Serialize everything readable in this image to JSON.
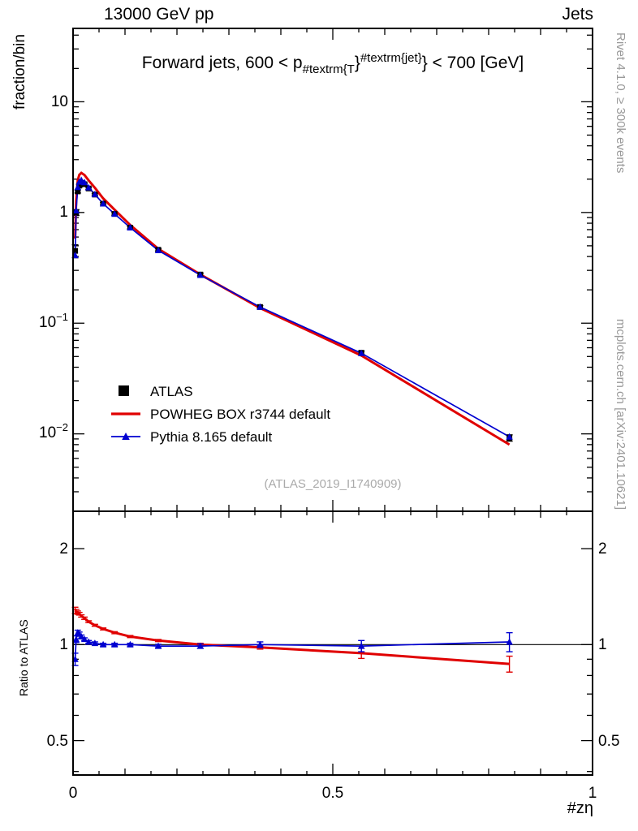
{
  "header": {
    "left": "13000 GeV pp",
    "right": "Jets"
  },
  "side_notes": {
    "top": "Rivet 4.1.0, ≥ 300k events",
    "bottom": "mcplots.cern.ch [arXiv:2401.10621]"
  },
  "title": {
    "pre": "Forward jets, 600 < p",
    "sub": "#textrm{T",
    "mid": "}",
    "sup": "#textrm{jet}",
    "post": "} < 700 [GeV]"
  },
  "watermark": "(ATLAS_2019_I1740909)",
  "legend": [
    {
      "label": "ATLAS",
      "color": "#000000",
      "marker": "square"
    },
    {
      "label": "POWHEG BOX r3744 default",
      "color": "#e00000",
      "marker": "line"
    },
    {
      "label": "Pythia 8.165 default",
      "color": "#0000d0",
      "marker": "triangle-line"
    }
  ],
  "axes": {
    "main_y_label": "fraction/bin",
    "ratio_y_label": "Ratio to ATLAS",
    "x_label": "#zη",
    "x_ticks": [
      {
        "v": 0,
        "label": "0"
      },
      {
        "v": 0.5,
        "label": "0.5"
      },
      {
        "v": 1,
        "label": "1"
      }
    ],
    "main_y_ticks": [
      {
        "v": 10,
        "base": "10",
        "exp": ""
      },
      {
        "v": 1,
        "base": "1",
        "exp": ""
      },
      {
        "v": 0.1,
        "base": "10",
        "exp": "−1"
      },
      {
        "v": 0.01,
        "base": "10",
        "exp": "−2"
      }
    ],
    "ratio_y_ticks": [
      {
        "v": 2,
        "label": "2"
      },
      {
        "v": 1,
        "label": "1"
      },
      {
        "v": 0.5,
        "label": "0.5"
      }
    ]
  },
  "chart_data": [
    {
      "type": "line",
      "panel": "main",
      "title": "Forward jets, 600 < pT^jet < 700 [GeV]",
      "xlabel": "#zη",
      "ylabel": "fraction/bin",
      "xscale": "linear",
      "yscale": "log",
      "xlim": [
        0,
        1
      ],
      "ylim": [
        0.002,
        46
      ],
      "grid": false,
      "legend_position": "middle-left",
      "x": [
        0.004,
        0.006,
        0.009,
        0.012,
        0.016,
        0.022,
        0.03,
        0.042,
        0.058,
        0.08,
        0.11,
        0.164,
        0.245,
        0.36,
        0.555,
        0.84
      ],
      "series": [
        {
          "name": "ATLAS",
          "color": "#000000",
          "marker": "square",
          "line": false,
          "values": [
            0.45,
            1.0,
            1.55,
            1.75,
            1.85,
            1.8,
            1.65,
            1.45,
            1.2,
            0.97,
            0.73,
            0.46,
            0.275,
            0.14,
            0.054,
            0.0092
          ],
          "errors": [
            0.06,
            0.06,
            0.05,
            0.05,
            0.05,
            0.04,
            0.04,
            0.03,
            0.03,
            0.025,
            0.02,
            0.012,
            0.008,
            0.004,
            0.002,
            0.0006
          ]
        },
        {
          "name": "POWHEG BOX r3744 default",
          "color": "#e00000",
          "marker": "none",
          "line": true,
          "values": [
            0.58,
            1.27,
            1.95,
            2.19,
            2.28,
            2.18,
            1.95,
            1.67,
            1.34,
            1.06,
            0.77,
            0.47,
            0.275,
            0.137,
            0.051,
            0.008
          ]
        },
        {
          "name": "Pythia 8.165 default",
          "color": "#0000d0",
          "marker": "triangle",
          "line": true,
          "values": [
            0.41,
            1.04,
            1.69,
            1.89,
            1.96,
            1.87,
            1.68,
            1.46,
            1.2,
            0.97,
            0.73,
            0.455,
            0.272,
            0.14,
            0.0535,
            0.0094
          ]
        }
      ]
    },
    {
      "type": "line",
      "panel": "ratio",
      "title": "",
      "xlabel": "#zη",
      "ylabel": "Ratio to ATLAS",
      "xscale": "linear",
      "yscale": "log",
      "xlim": [
        0,
        1
      ],
      "ylim": [
        0.39,
        2.62
      ],
      "grid": false,
      "x": [
        0.004,
        0.006,
        0.009,
        0.012,
        0.016,
        0.022,
        0.03,
        0.042,
        0.058,
        0.08,
        0.11,
        0.164,
        0.245,
        0.36,
        0.555,
        0.84
      ],
      "series": [
        {
          "name": "ATLAS",
          "color": "#000000",
          "marker": "none",
          "line": true,
          "values": [
            1,
            1,
            1,
            1,
            1,
            1,
            1,
            1,
            1,
            1,
            1,
            1,
            1,
            1,
            1,
            1
          ]
        },
        {
          "name": "POWHEG BOX r3744 default",
          "color": "#e00000",
          "marker": "none",
          "line": true,
          "values": [
            1.28,
            1.27,
            1.26,
            1.25,
            1.23,
            1.21,
            1.18,
            1.15,
            1.12,
            1.09,
            1.06,
            1.03,
            1.0,
            0.98,
            0.94,
            0.87
          ],
          "errors": [
            0.03,
            0.02,
            0.015,
            0.012,
            0.01,
            0.01,
            0.008,
            0.008,
            0.008,
            0.008,
            0.008,
            0.008,
            0.01,
            0.012,
            0.035,
            0.05
          ]
        },
        {
          "name": "Pythia 8.165 default",
          "color": "#0000d0",
          "marker": "triangle",
          "line": true,
          "values": [
            0.9,
            1.04,
            1.09,
            1.08,
            1.06,
            1.04,
            1.02,
            1.01,
            1.0,
            1.0,
            1.0,
            0.99,
            0.99,
            1.0,
            0.99,
            1.02
          ],
          "errors": [
            0.04,
            0.025,
            0.02,
            0.015,
            0.012,
            0.01,
            0.01,
            0.01,
            0.01,
            0.01,
            0.01,
            0.012,
            0.015,
            0.02,
            0.04,
            0.07
          ]
        }
      ]
    }
  ]
}
